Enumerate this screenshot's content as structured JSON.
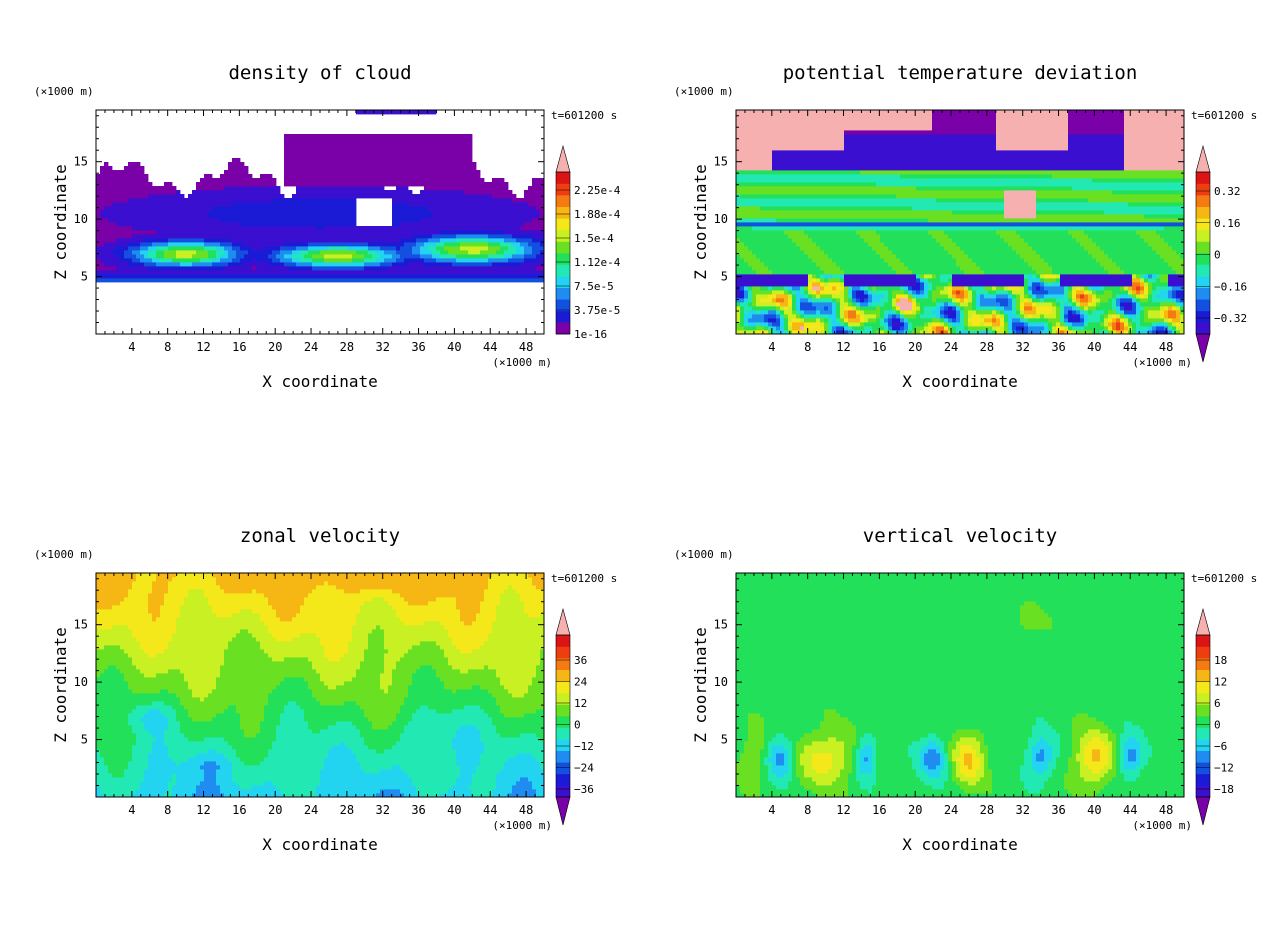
{
  "chart_data": [
    {
      "type": "heatmap",
      "title": "density of cloud",
      "xlabel": "X coordinate",
      "ylabel": "Z coordinate",
      "x_unit": "(×1000 m)",
      "y_unit": "(×1000 m)",
      "time_label": "t=601200 s",
      "xlim": [
        0,
        50
      ],
      "ylim": [
        0,
        19.5
      ],
      "xticks": [
        "4",
        "8",
        "12",
        "16",
        "20",
        "24",
        "28",
        "32",
        "36",
        "40",
        "44",
        "48"
      ],
      "yticks": [
        "5",
        "10",
        "15"
      ],
      "colorbar": {
        "labels": [
          "2.25e-4",
          "1.88e-4",
          "1.5e-4",
          "1.12e-4",
          "7.5e-5",
          "3.75e-5",
          "1e-16"
        ],
        "has_over_arrow": true,
        "has_under_arrow": false
      },
      "field": "cloud"
    },
    {
      "type": "heatmap",
      "title": "potential temperature deviation",
      "xlabel": "X coordinate",
      "ylabel": "Z coordinate",
      "x_unit": "(×1000 m)",
      "y_unit": "(×1000 m)",
      "time_label": "t=601200 s",
      "xlim": [
        0,
        50
      ],
      "ylim": [
        0,
        19.5
      ],
      "xticks": [
        "4",
        "8",
        "12",
        "16",
        "20",
        "24",
        "28",
        "32",
        "36",
        "40",
        "44",
        "48"
      ],
      "yticks": [
        "5",
        "10",
        "15"
      ],
      "colorbar": {
        "labels": [
          "0.32",
          "0.16",
          "0",
          "−0.16",
          "−0.32"
        ],
        "has_over_arrow": true,
        "has_under_arrow": true
      },
      "field": "theta"
    },
    {
      "type": "heatmap",
      "title": "zonal velocity",
      "xlabel": "X coordinate",
      "ylabel": "Z coordinate",
      "x_unit": "(×1000 m)",
      "y_unit": "(×1000 m)",
      "time_label": "t=601200 s",
      "xlim": [
        0,
        50
      ],
      "ylim": [
        0,
        19.5
      ],
      "xticks": [
        "4",
        "8",
        "12",
        "16",
        "20",
        "24",
        "28",
        "32",
        "36",
        "40",
        "44",
        "48"
      ],
      "yticks": [
        "5",
        "10",
        "15"
      ],
      "colorbar": {
        "labels": [
          "36",
          "24",
          "12",
          "0",
          "−12",
          "−24",
          "−36"
        ],
        "has_over_arrow": true,
        "has_under_arrow": true
      },
      "field": "u"
    },
    {
      "type": "heatmap",
      "title": "vertical velocity",
      "xlabel": "X coordinate",
      "ylabel": "Z coordinate",
      "x_unit": "(×1000 m)",
      "y_unit": "(×1000 m)",
      "time_label": "t=601200 s",
      "xlim": [
        0,
        50
      ],
      "ylim": [
        0,
        19.5
      ],
      "xticks": [
        "4",
        "8",
        "12",
        "16",
        "20",
        "24",
        "28",
        "32",
        "36",
        "40",
        "44",
        "48"
      ],
      "yticks": [
        "5",
        "10",
        "15"
      ],
      "colorbar": {
        "labels": [
          "18",
          "12",
          "6",
          "0",
          "−6",
          "−12",
          "−18"
        ],
        "has_over_arrow": true,
        "has_under_arrow": true
      },
      "field": "w"
    }
  ],
  "palette": [
    "#7a00a8",
    "#3a0fcf",
    "#1b1bd6",
    "#1450e0",
    "#1f8cf0",
    "#22d4f0",
    "#22e8b4",
    "#22e05a",
    "#6ae022",
    "#c8f022",
    "#f4e81a",
    "#f6b614",
    "#f47a12",
    "#ee3d10",
    "#dc1414",
    "#f6b0b0"
  ]
}
